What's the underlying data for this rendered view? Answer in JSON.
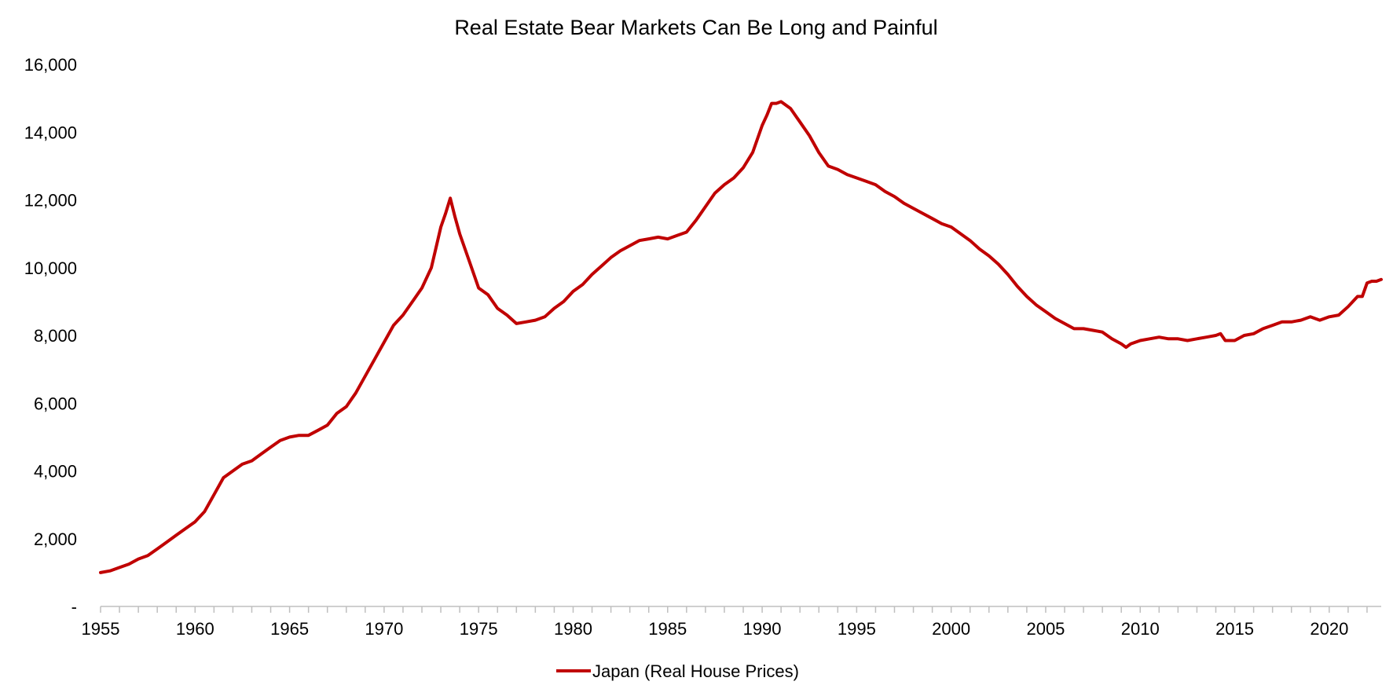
{
  "chart_data": {
    "type": "line",
    "title": "Real Estate Bear Markets Can Be Long and Painful",
    "xlabel": "",
    "ylabel": "",
    "xlim": [
      1955,
      2022.75
    ],
    "ylim": [
      0,
      16000
    ],
    "y_ticks": [
      0,
      2000,
      4000,
      6000,
      8000,
      10000,
      12000,
      14000,
      16000
    ],
    "y_tick_labels": [
      "-",
      "2,000",
      "4,000",
      "6,000",
      "8,000",
      "10,000",
      "12,000",
      "14,000",
      "16,000"
    ],
    "x_ticks": [
      1955,
      1960,
      1965,
      1970,
      1975,
      1980,
      1985,
      1990,
      1995,
      2000,
      2005,
      2010,
      2015,
      2020
    ],
    "x_tick_labels": [
      "1955",
      "1960",
      "1965",
      "1970",
      "1975",
      "1980",
      "1985",
      "1990",
      "1995",
      "2000",
      "2005",
      "2010",
      "2015",
      "2020"
    ],
    "grid": false,
    "legend_position": "bottom",
    "series": [
      {
        "name": "Japan (Real House Prices)",
        "color": "#C00000",
        "x": [
          1955,
          1955.5,
          1956,
          1956.5,
          1957,
          1957.5,
          1958,
          1958.5,
          1959,
          1959.5,
          1960,
          1960.5,
          1961,
          1961.5,
          1962,
          1962.5,
          1963,
          1963.5,
          1964,
          1964.5,
          1965,
          1965.5,
          1966,
          1966.5,
          1967,
          1967.5,
          1968,
          1968.5,
          1969,
          1969.5,
          1970,
          1970.5,
          1971,
          1971.5,
          1972,
          1972.5,
          1973,
          1973.25,
          1973.5,
          1973.75,
          1974,
          1974.5,
          1975,
          1975.5,
          1976,
          1976.5,
          1977,
          1977.5,
          1978,
          1978.5,
          1979,
          1979.5,
          1980,
          1980.5,
          1981,
          1981.5,
          1982,
          1982.5,
          1983,
          1983.5,
          1984,
          1984.5,
          1985,
          1985.5,
          1986,
          1986.5,
          1987,
          1987.5,
          1988,
          1988.5,
          1989,
          1989.5,
          1990,
          1990.25,
          1990.5,
          1990.75,
          1991,
          1991.5,
          1992,
          1992.5,
          1993,
          1993.5,
          1994,
          1994.5,
          1995,
          1995.5,
          1996,
          1996.5,
          1997,
          1997.5,
          1998,
          1998.5,
          1999,
          1999.5,
          2000,
          2000.5,
          2001,
          2001.5,
          2002,
          2002.5,
          2003,
          2003.5,
          2004,
          2004.5,
          2005,
          2005.5,
          2006,
          2006.5,
          2007,
          2007.5,
          2008,
          2008.5,
          2009,
          2009.25,
          2009.5,
          2010,
          2010.5,
          2011,
          2011.5,
          2012,
          2012.5,
          2013,
          2013.5,
          2014,
          2014.25,
          2014.5,
          2015,
          2015.5,
          2016,
          2016.5,
          2017,
          2017.5,
          2018,
          2018.5,
          2019,
          2019.5,
          2020,
          2020.5,
          2021,
          2021.5,
          2021.75,
          2022,
          2022.25,
          2022.5,
          2022.75
        ],
        "y": [
          1000,
          1050,
          1150,
          1250,
          1400,
          1500,
          1700,
          1900,
          2100,
          2300,
          2500,
          2800,
          3300,
          3800,
          4000,
          4200,
          4300,
          4500,
          4700,
          4900,
          5000,
          5050,
          5050,
          5200,
          5350,
          5700,
          5900,
          6300,
          6800,
          7300,
          7800,
          8300,
          8600,
          9000,
          9400,
          10000,
          11200,
          11600,
          12050,
          11500,
          11000,
          10200,
          9400,
          9200,
          8800,
          8600,
          8350,
          8400,
          8450,
          8550,
          8800,
          9000,
          9300,
          9500,
          9800,
          10050,
          10300,
          10500,
          10650,
          10800,
          10850,
          10900,
          10850,
          10950,
          11050,
          11400,
          11800,
          12200,
          12450,
          12650,
          12950,
          13400,
          14200,
          14500,
          14850,
          14850,
          14900,
          14700,
          14300,
          13900,
          13400,
          13000,
          12900,
          12750,
          12650,
          12550,
          12450,
          12250,
          12100,
          11900,
          11750,
          11600,
          11450,
          11300,
          11200,
          11000,
          10800,
          10550,
          10350,
          10100,
          9800,
          9450,
          9150,
          8900,
          8700,
          8500,
          8350,
          8200,
          8200,
          8150,
          8100,
          7900,
          7750,
          7650,
          7750,
          7850,
          7900,
          7950,
          7900,
          7900,
          7850,
          7900,
          7950,
          8000,
          8050,
          7850,
          7850,
          8000,
          8050,
          8200,
          8300,
          8400,
          8400,
          8450,
          8550,
          8450,
          8550,
          8600,
          8850,
          9150,
          9150,
          9550,
          9600,
          9600,
          9650
        ]
      }
    ]
  }
}
